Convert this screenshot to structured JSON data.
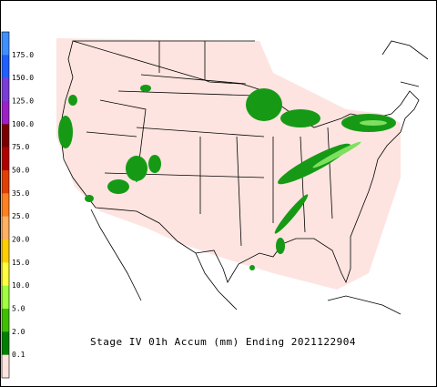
{
  "legend": {
    "labels": [
      "175.0",
      "150.0",
      "125.0",
      "100.0",
      "75.0",
      "50.0",
      "35.0",
      "25.0",
      "20.0",
      "15.0",
      "10.0",
      "5.0",
      "2.0",
      "0.1"
    ],
    "colors": [
      "#3f8fff",
      "#2060ff",
      "#7a3cd8",
      "#9b20c8",
      "#7a0000",
      "#b00000",
      "#e04000",
      "#ff8020",
      "#ffb060",
      "#ffd000",
      "#ffff40",
      "#a0ff40",
      "#40c000",
      "#008000",
      "#fde4e0"
    ]
  },
  "map": {
    "title": "Stage IV 01h Accum (mm) Ending 2021122904"
  }
}
